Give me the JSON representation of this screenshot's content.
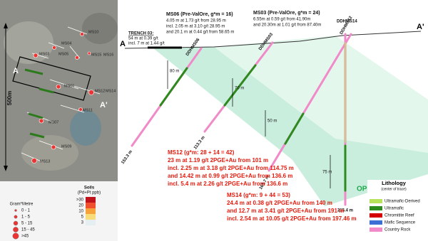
{
  "map": {
    "scale_label": "500m",
    "section_start": "A",
    "section_end": "A'",
    "collars": [
      "MS10",
      "MS04",
      "MS03",
      "MS05",
      "MS15",
      "MS16",
      "MS06",
      "MS12",
      "MS14",
      "MS11",
      "MS07",
      "MS09",
      "MS13"
    ],
    "gram_metre": {
      "title": "Gram*Metre",
      "classes": [
        "0 - 1",
        "1 - 5",
        "5 - 15",
        "15 - 45",
        ">45"
      ]
    },
    "soils": {
      "title": "Soils",
      "subtitle": "(Pd+Pt ppb)",
      "classes": [
        ">30",
        "20",
        "10",
        "5",
        "3"
      ]
    }
  },
  "section": {
    "start": "A",
    "end": "A'",
    "trench": [
      "TRENCH 03:",
      "54 m at 0.39 g/t",
      "incl. 7 m at 1.44 g/t"
    ],
    "ms06": [
      "MS06 (Pre-ValOre, g*m = 16)",
      "4.05 m at 1.73 g/t from 28.95 m",
      "incl. 2.05 m at 3.10 g/t 28.95 m",
      "and 20.1 m at 0.44 g/t from 58.65 m"
    ],
    "ms03": [
      "MS03 (Pre-ValOre, g*m = 24)",
      "6.55m at 0.59 g/t from 41.90m",
      "and 20.30m at 1.01 g/t from 87.40m"
    ],
    "holes": [
      {
        "name": "DDHMS06",
        "depth": "153.3 m"
      },
      {
        "name": "DDHMS03",
        "depth": "113.3 m"
      },
      {
        "name": "DDHMS12",
        "depth": "165.7 m"
      },
      {
        "name": "DDHMS14",
        "depth": "215.4 m"
      }
    ],
    "widths": [
      "80 m",
      "70 m",
      "50 m",
      "75 m"
    ],
    "open": "OPEN",
    "ms12": [
      "MS12 (g*m: 28 + 14 = 42)",
      "23 m at 1.19 g/t 2PGE+Au from 101 m",
      "incl. 2.25 m at 3.18 g/t 2PGE+Au from 114.75 m",
      "and 14.42 m at 0.99 g/t 2PGE+Au from 136.6 m",
      "incl. 5.4 m at 2.26 g/t 2PGE+Au from 136.6 m"
    ],
    "ms14": [
      "MS14 (g*m: 9 + 44 = 53)",
      "24.4 m at 0.38 g/t 2PGE+Au from 140 m",
      "and 12.7 m at 3.41 g/t 2PGE+Au from 191 m",
      "incl. 2.54 m at 10.05 g/t 2PGE+Au from 197.46 m"
    ],
    "legend": {
      "title": "Lithology",
      "subtitle": "(center of trace)",
      "items": [
        "Ultramafic-Derived",
        "Ultramafic",
        "Chromitite Reef",
        "Mafic Sequence",
        "Country Rock"
      ]
    }
  }
}
